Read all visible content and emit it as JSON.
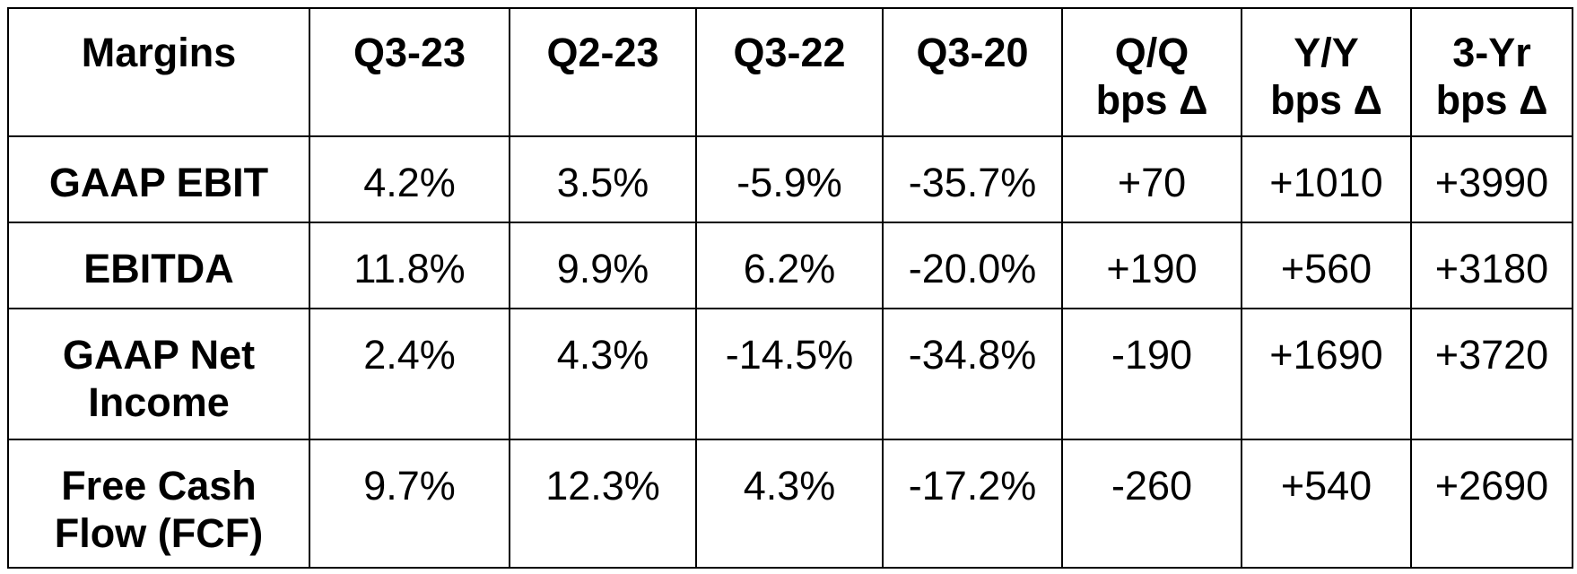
{
  "chart_data": {
    "type": "table",
    "columns": [
      [
        "Margins"
      ],
      [
        "Q3-23"
      ],
      [
        "Q2-23"
      ],
      [
        "Q3-22"
      ],
      [
        "Q3-20"
      ],
      [
        "Q/Q",
        "bps Δ"
      ],
      [
        "Y/Y",
        "bps Δ"
      ],
      [
        "3-Yr",
        "bps Δ"
      ]
    ],
    "rows": [
      {
        "label": [
          "GAAP EBIT"
        ],
        "values": [
          "4.2%",
          "3.5%",
          "-5.9%",
          "-35.7%",
          "+70",
          "+1010",
          "+3990"
        ]
      },
      {
        "label": [
          "EBITDA"
        ],
        "values": [
          "11.8%",
          "9.9%",
          "6.2%",
          "-20.0%",
          "+190",
          "+560",
          "+3180"
        ]
      },
      {
        "label": [
          "GAAP Net",
          "Income"
        ],
        "values": [
          "2.4%",
          "4.3%",
          "-14.5%",
          "-34.8%",
          "-190",
          "+1690",
          "+3720"
        ]
      },
      {
        "label": [
          "Free Cash",
          "Flow (FCF)"
        ],
        "values": [
          "9.7%",
          "12.3%",
          "4.3%",
          "-17.2%",
          "-260",
          "+540",
          "+2690"
        ]
      }
    ]
  }
}
